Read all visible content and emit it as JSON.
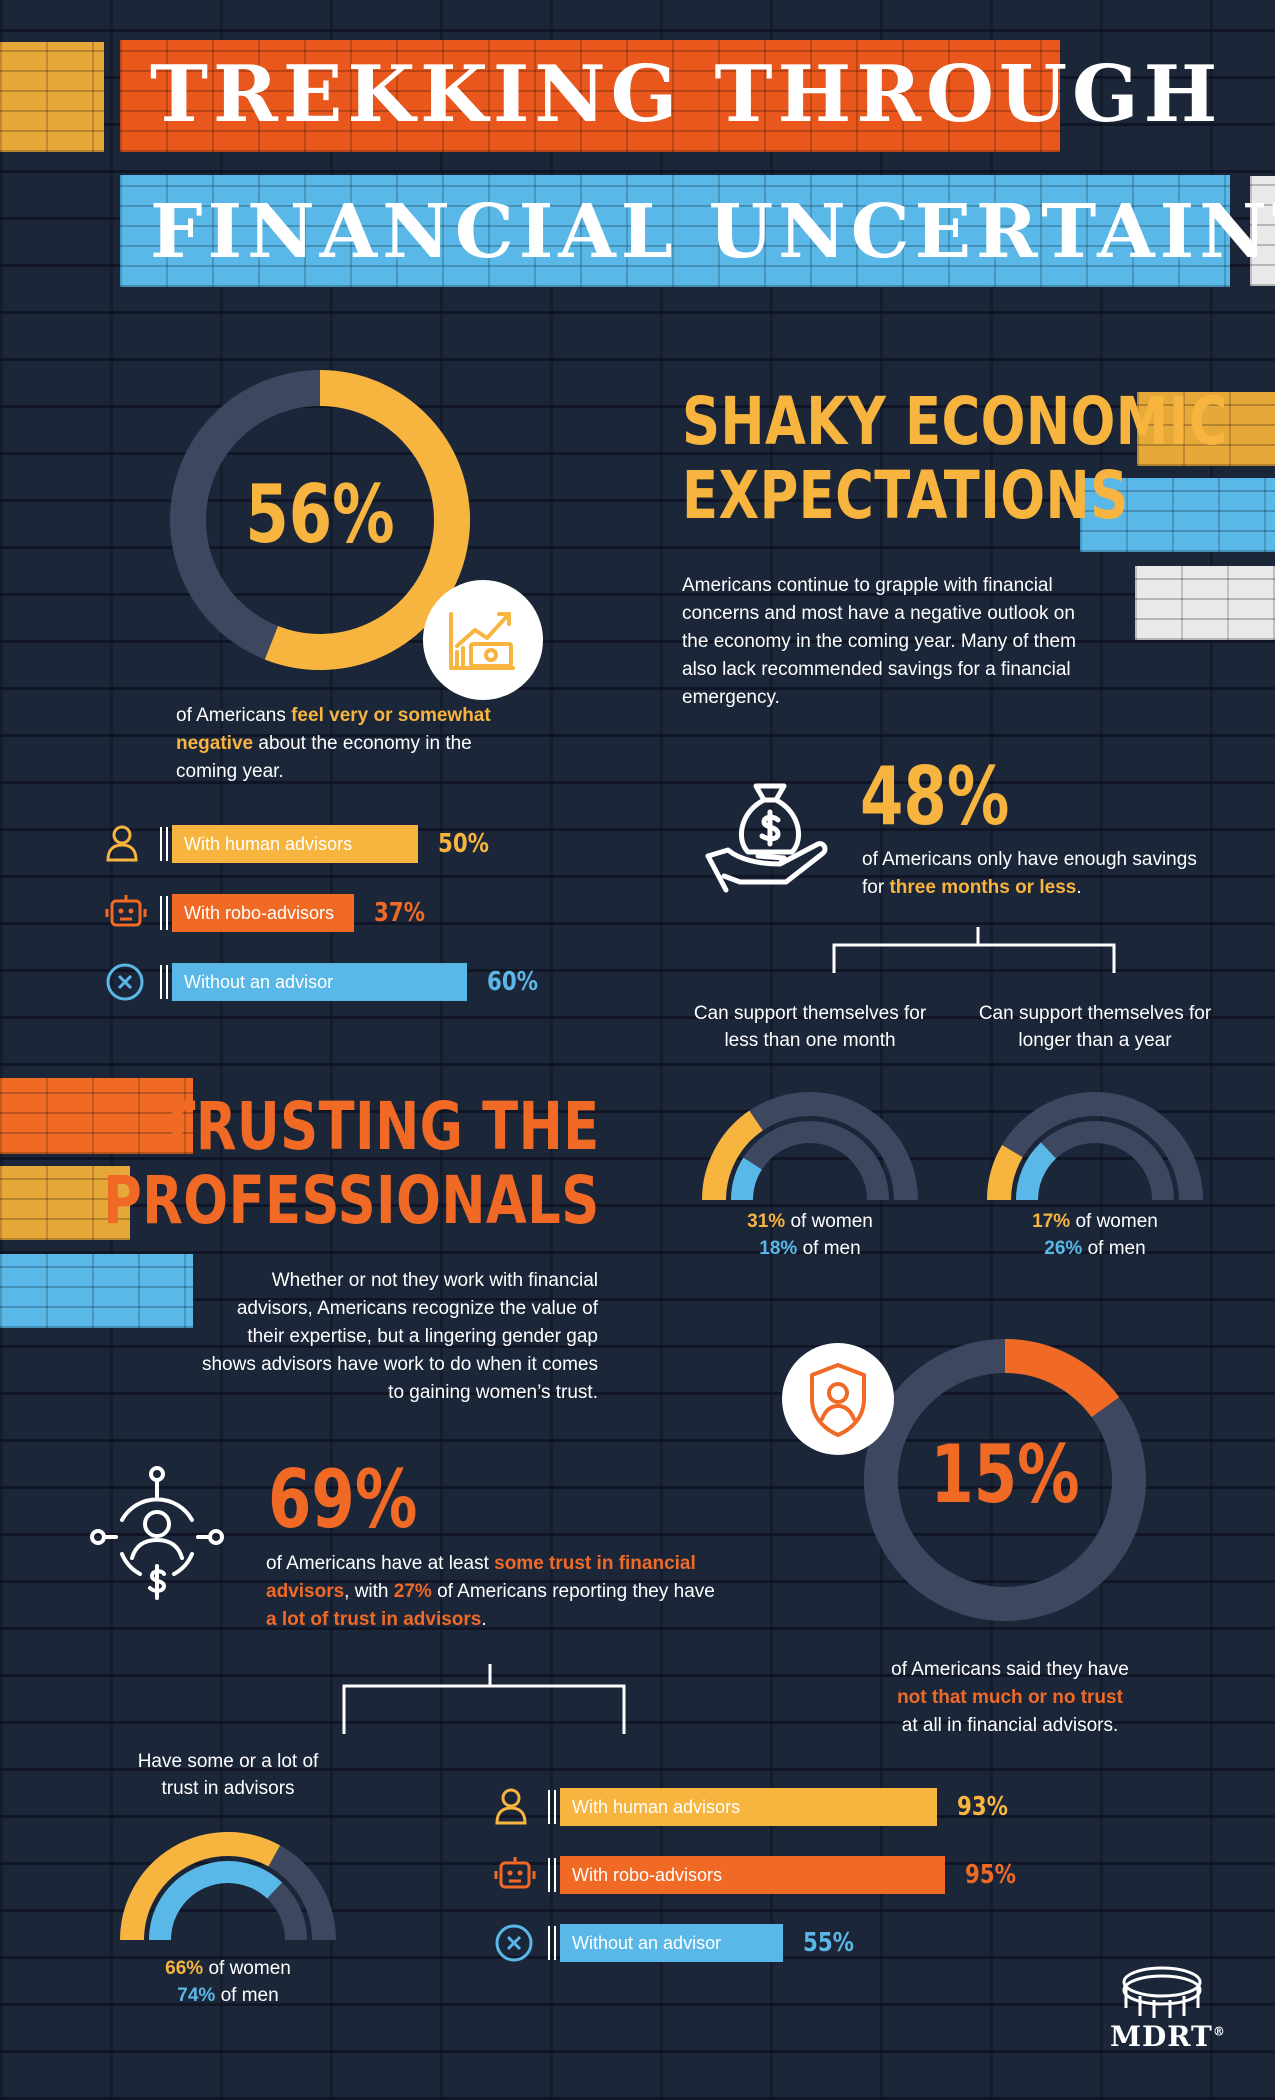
{
  "title": {
    "line1": "TREKKING THROUGH",
    "line2": "FINANCIAL UNCERTAINTY"
  },
  "negative": {
    "pct": "56%",
    "value": 56,
    "pre": "of Americans ",
    "highlight": "feel very or somewhat negative",
    "post": " about the economy in the coming year.",
    "bars": [
      {
        "label": "With human advisors",
        "value": "50%",
        "pct": 50,
        "color": "#f7b43f",
        "icon": "person-icon"
      },
      {
        "label": "With robo-advisors",
        "value": "37%",
        "pct": 37,
        "color": "#f06a26",
        "icon": "robot-icon"
      },
      {
        "label": "Without an advisor",
        "value": "60%",
        "pct": 60,
        "color": "#5ab8e8",
        "icon": "x-circle-icon"
      }
    ]
  },
  "shaky": {
    "heading_line1": "SHAKY ECONOMIC",
    "heading_line2": "EXPECTATIONS",
    "body": "Americans continue to grapple with financial concerns and most have a negative outlook on the economy in the coming year. Many of them also lack recommended savings for a financial emergency."
  },
  "savings": {
    "pct": "48%",
    "pre": "of Americans only have enough savings for ",
    "highlight": "three months or less",
    "post": ".",
    "left_label": "Can support themselves for less than one month",
    "right_label": "Can support themselves for longer than a year",
    "left": {
      "women": "31%",
      "women_value": 31,
      "women_text": " of women",
      "men": "18%",
      "men_value": 18,
      "men_text": " of men"
    },
    "right": {
      "women": "17%",
      "women_value": 17,
      "women_text": " of women",
      "men": "26%",
      "men_value": 26,
      "men_text": " of men"
    }
  },
  "trusting": {
    "heading_line1": "TRUSTING THE",
    "heading_line2": "PROFESSIONALS",
    "body": "Whether or not they work with financial advisors, Americans recognize the value of their expertise, but a lingering gender gap shows advisors have work to do when it comes to gaining women’s trust."
  },
  "no_trust": {
    "pct": "15%",
    "value": 15,
    "pre": "of Americans said they have",
    "highlight": "not that much or no trust",
    "post": "at all in financial advisors."
  },
  "some_trust": {
    "pct": "69%",
    "pre": "of Americans have at least ",
    "highlight1": "some trust in financial advisors",
    "mid1": ", with ",
    "highlight2": "27%",
    "mid2": " of Americans reporting they have ",
    "highlight3": "a lot of trust in advisors",
    "post": ".",
    "gauge_label": "Have some or a lot of trust in advisors",
    "women": "66%",
    "women_value": 66,
    "women_text": " of women",
    "men": "74%",
    "men_value": 74,
    "men_text": " of men",
    "bars": [
      {
        "label": "With human advisors",
        "value": "93%",
        "pct": 93,
        "color": "#f7b43f",
        "icon": "person-icon"
      },
      {
        "label": "With robo-advisors",
        "value": "95%",
        "pct": 95,
        "color": "#f06a26",
        "icon": "robot-icon"
      },
      {
        "label": "Without an advisor",
        "value": "55%",
        "pct": 55,
        "color": "#5ab8e8",
        "icon": "x-circle-icon"
      }
    ]
  },
  "logo": {
    "text": "MDRT",
    "mark": "®"
  },
  "colors": {
    "orange": "#f06a26",
    "gold": "#f7b43f",
    "blue": "#5ab8e8",
    "track": "#3d4760",
    "background": "#1c2639"
  }
}
